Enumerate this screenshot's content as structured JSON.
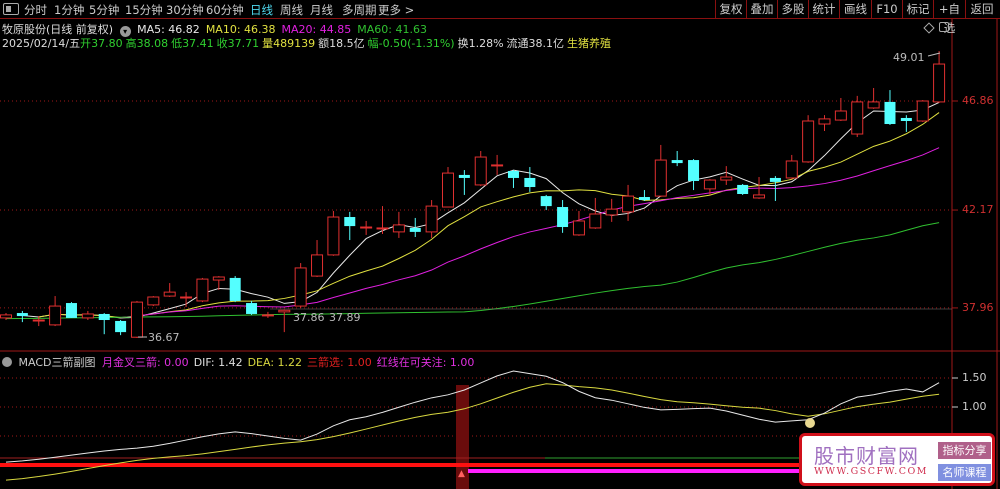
{
  "toolbar": {
    "left_tabs": [
      "分时",
      "1分钟",
      "5分钟",
      "15分钟",
      "30分钟",
      "60分钟",
      "日线",
      "周线",
      "月线",
      "多周期",
      "更多 >"
    ],
    "active_tab": "日线",
    "right_buttons": [
      "复权",
      "叠加",
      "多股",
      "统计",
      "画线",
      "F10",
      "标记",
      "+自选",
      "返回"
    ]
  },
  "header": {
    "title": "牧原股份(日线 前复权)",
    "ma": [
      {
        "label": "MA5: 46.82",
        "color": "#e8e8e8"
      },
      {
        "label": "MA10: 46.38",
        "color": "#e0e040"
      },
      {
        "label": "MA20: 44.85",
        "color": "#e020e0"
      },
      {
        "label": "MA60: 41.63",
        "color": "#30c030"
      }
    ],
    "quote": {
      "date": "2025/02/14/五",
      "open": "开37.80",
      "high": "高38.08",
      "low": "低37.41",
      "close": "收37.71",
      "volume": "量489139",
      "amount": "额18.5亿",
      "change": "幅-0.50(-1.31%)",
      "turnover": "换1.28%",
      "float": "流通38.1亿",
      "industry": "生猪养殖"
    }
  },
  "price_axis": {
    "labels": [
      "46.86",
      "42.17",
      "37.96"
    ],
    "values": [
      46.86,
      42.17,
      37.96
    ]
  },
  "annotations": {
    "max": "49.01",
    "min": "36.67",
    "mid_a": "37.86",
    "mid_b": "37.89"
  },
  "colors": {
    "up": "#e03030",
    "down": "#54ffff",
    "ma5": "#e8e8e8",
    "ma10": "#e0e040",
    "ma20": "#e020e0",
    "ma60": "#30c030",
    "dif": "#e8e8e8",
    "dea": "#d8d840",
    "grid": "#a01818"
  },
  "chart_data": {
    "type": "candlestick",
    "ylim": [
      35.9,
      50.0
    ],
    "candles": [
      [
        37.53,
        37.74,
        37.44,
        37.66
      ],
      [
        37.74,
        37.83,
        37.35,
        37.61
      ],
      [
        37.44,
        37.61,
        37.18,
        37.44
      ],
      [
        37.23,
        38.47,
        37.18,
        38.04
      ],
      [
        38.17,
        38.21,
        37.53,
        37.53
      ],
      [
        37.53,
        37.83,
        37.44,
        37.7
      ],
      [
        37.7,
        37.74,
        36.83,
        37.44
      ],
      [
        37.4,
        37.44,
        36.79,
        36.92
      ],
      [
        36.7,
        38.26,
        36.67,
        38.21
      ],
      [
        38.09,
        38.47,
        38.04,
        38.43
      ],
      [
        38.47,
        39.03,
        38.43,
        38.64
      ],
      [
        38.43,
        38.64,
        38.0,
        38.43
      ],
      [
        38.26,
        39.25,
        38.21,
        39.2
      ],
      [
        39.16,
        39.33,
        38.73,
        39.29
      ],
      [
        39.25,
        39.33,
        38.21,
        38.26
      ],
      [
        38.17,
        38.26,
        37.66,
        37.7
      ],
      [
        37.66,
        37.79,
        37.53,
        37.66
      ],
      [
        37.79,
        37.89,
        36.92,
        37.86
      ],
      [
        38.04,
        39.89,
        37.96,
        39.68
      ],
      [
        39.33,
        40.88,
        39.29,
        40.24
      ],
      [
        40.24,
        42.13,
        40.2,
        41.87
      ],
      [
        41.87,
        42.09,
        40.88,
        41.48
      ],
      [
        41.44,
        41.7,
        41.1,
        41.44
      ],
      [
        41.4,
        42.34,
        41.14,
        41.4
      ],
      [
        41.23,
        42.09,
        40.97,
        41.53
      ],
      [
        41.4,
        41.83,
        41.01,
        41.23
      ],
      [
        41.23,
        42.6,
        40.97,
        42.34
      ],
      [
        42.3,
        44.02,
        42.3,
        43.76
      ],
      [
        43.68,
        43.89,
        42.82,
        43.55
      ],
      [
        43.25,
        44.71,
        43.2,
        44.45
      ],
      [
        44.11,
        44.54,
        43.68,
        44.11
      ],
      [
        43.85,
        43.89,
        43.12,
        43.55
      ],
      [
        43.55,
        44.02,
        42.95,
        43.16
      ],
      [
        42.77,
        42.82,
        42.17,
        42.34
      ],
      [
        42.3,
        42.6,
        41.19,
        41.44
      ],
      [
        41.1,
        42.13,
        41.06,
        41.7
      ],
      [
        41.4,
        42.69,
        41.36,
        42.0
      ],
      [
        41.96,
        42.65,
        41.66,
        42.21
      ],
      [
        42.09,
        43.25,
        41.7,
        42.77
      ],
      [
        42.73,
        43.03,
        42.56,
        42.6
      ],
      [
        42.77,
        44.97,
        42.73,
        44.32
      ],
      [
        44.32,
        44.71,
        44.06,
        44.19
      ],
      [
        44.32,
        44.36,
        43.03,
        43.42
      ],
      [
        43.08,
        43.5,
        42.82,
        43.46
      ],
      [
        43.46,
        44.06,
        43.25,
        43.59
      ],
      [
        43.25,
        43.29,
        42.82,
        42.86
      ],
      [
        42.69,
        43.59,
        42.65,
        42.82
      ],
      [
        43.55,
        43.63,
        42.56,
        43.38
      ],
      [
        43.55,
        44.54,
        43.5,
        44.28
      ],
      [
        44.24,
        46.25,
        44.2,
        46.0
      ],
      [
        45.87,
        46.25,
        45.57,
        46.09
      ],
      [
        46.04,
        46.99,
        46.0,
        46.43
      ],
      [
        45.44,
        47.08,
        45.31,
        46.82
      ],
      [
        46.56,
        47.42,
        46.52,
        46.82
      ],
      [
        46.82,
        47.33,
        45.83,
        45.87
      ],
      [
        46.13,
        46.25,
        45.53,
        46.0
      ],
      [
        46.0,
        46.9,
        45.96,
        46.86
      ],
      [
        46.82,
        49.01,
        46.78,
        48.45
      ]
    ],
    "candle_fields": [
      "open",
      "high",
      "low",
      "close"
    ],
    "ma60_points": [
      [
        0,
        37.5
      ],
      [
        10,
        37.58
      ],
      [
        17,
        37.68
      ],
      [
        28,
        37.79
      ],
      [
        40,
        38.94
      ],
      [
        45,
        39.81
      ],
      [
        53,
        40.97
      ],
      [
        57,
        41.63
      ]
    ],
    "macd": {
      "title": "MACD三箭副图",
      "legend": [
        {
          "label": "月金叉三箭: 0.00",
          "color": "#e030e0"
        },
        {
          "label": "DIF: 1.42",
          "color": "#e0e0e0"
        },
        {
          "label": "DEA: 1.22",
          "color": "#d8d840"
        },
        {
          "label": "三箭选: 1.00",
          "color": "#e02020"
        },
        {
          "label": "红线在可关注: 1.00",
          "color": "#e030e0"
        }
      ],
      "axis_labels": [
        "1.50",
        "1.00"
      ],
      "axis_values": [
        1.5,
        1.0
      ],
      "dif_points": [
        [
          0,
          0.05
        ],
        [
          8,
          0.29
        ],
        [
          14,
          0.57
        ],
        [
          18,
          0.43
        ],
        [
          21,
          0.78
        ],
        [
          27,
          1.21
        ],
        [
          31,
          1.62
        ],
        [
          33,
          1.53
        ],
        [
          36,
          1.16
        ],
        [
          40,
          0.95
        ],
        [
          43,
          0.98
        ],
        [
          47,
          0.74
        ],
        [
          49,
          0.78
        ],
        [
          52,
          1.17
        ],
        [
          55,
          1.31
        ],
        [
          56,
          1.26
        ],
        [
          57,
          1.42
        ]
      ],
      "dea_points": [
        [
          0,
          -0.26
        ],
        [
          10,
          0.14
        ],
        [
          18,
          0.4
        ],
        [
          27,
          0.91
        ],
        [
          33,
          1.4
        ],
        [
          36,
          1.33
        ],
        [
          41,
          1.09
        ],
        [
          46,
          0.98
        ],
        [
          49,
          0.84
        ],
        [
          53,
          1.05
        ],
        [
          57,
          1.22
        ]
      ],
      "signal_index": 27
    }
  },
  "watermark": {
    "title": "股市财富网",
    "url": "WWW.GSCFW.COM",
    "tag1": "指标分享",
    "tag2": "名师课程"
  }
}
